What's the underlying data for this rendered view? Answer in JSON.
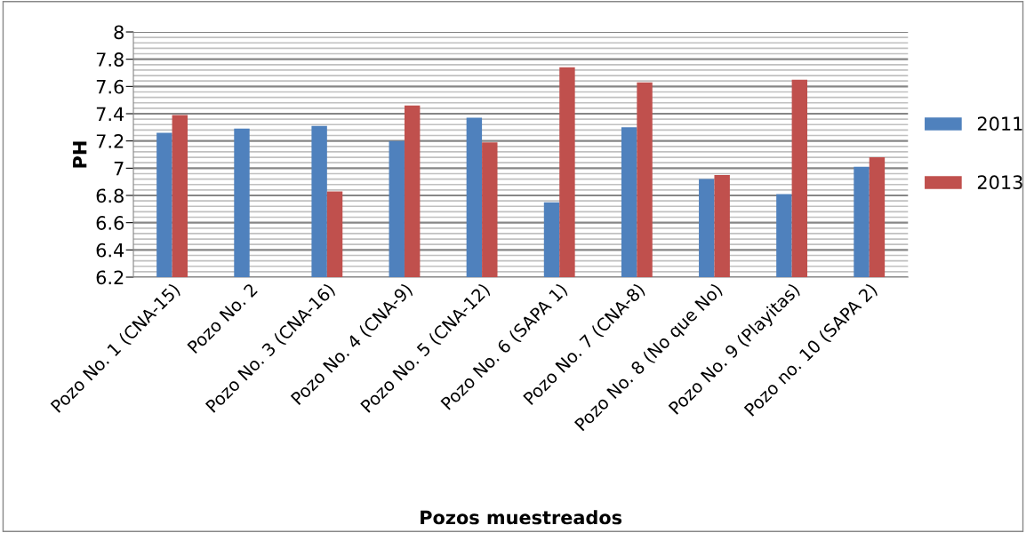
{
  "chart_data": {
    "type": "bar",
    "xlabel": "Pozos muestreados",
    "ylabel": "PH",
    "categories": [
      "Pozo No. 1 (CNA-15)",
      "Pozo No. 2",
      "Pozo No. 3 (CNA-16)",
      "Pozo No. 4 (CNA-9)",
      "Pozo No. 5 (CNA-12)",
      "Pozo No. 6 (SAPA 1)",
      "Pozo No. 7 (CNA-8)",
      "Pozo No. 8 (No que No)",
      "Pozo No. 9 (Playitas)",
      "Pozo no. 10 (SAPA 2)"
    ],
    "series": [
      {
        "name": "2011",
        "color": "#4f81bd",
        "values": [
          7.26,
          7.29,
          7.31,
          7.2,
          7.37,
          6.75,
          7.3,
          6.92,
          6.81,
          7.01
        ]
      },
      {
        "name": "2013",
        "color": "#c0504d",
        "values": [
          7.39,
          null,
          6.83,
          7.46,
          7.19,
          7.74,
          7.63,
          6.95,
          7.65,
          7.08
        ]
      }
    ],
    "ylim": [
      6.2,
      8
    ],
    "yticks": [
      6.2,
      {
        "value": 6.24,
        "label": null
      },
      {
        "value": 6.28,
        "label": null
      },
      {
        "value": 6.32,
        "label": null
      },
      {
        "value": 6.36,
        "label": null
      },
      6.4,
      {
        "value": 6.44,
        "label": null
      },
      {
        "value": 6.48,
        "label": null
      },
      {
        "value": 6.52,
        "label": null
      },
      {
        "value": 6.56,
        "label": null
      },
      6.6,
      {
        "value": 6.64,
        "label": null
      },
      {
        "value": 6.68,
        "label": null
      },
      {
        "value": 6.72,
        "label": null
      },
      {
        "value": 6.76,
        "label": null
      },
      6.8,
      {
        "value": 6.84,
        "label": null
      },
      {
        "value": 6.88,
        "label": null
      },
      {
        "value": 6.92,
        "label": null
      },
      {
        "value": 6.96,
        "label": null
      },
      7,
      {
        "value": 7.04,
        "label": null
      },
      {
        "value": 7.08,
        "label": null
      },
      {
        "value": 7.12,
        "label": null
      },
      {
        "value": 7.16,
        "label": null
      },
      7.2,
      {
        "value": 7.24,
        "label": null
      },
      {
        "value": 7.28,
        "label": null
      },
      {
        "value": 7.32,
        "label": null
      },
      {
        "value": 7.36,
        "label": null
      },
      7.4,
      {
        "value": 7.44,
        "label": null
      },
      {
        "value": 7.48,
        "label": null
      },
      {
        "value": 7.52,
        "label": null
      },
      {
        "value": 7.56,
        "label": null
      },
      7.6,
      {
        "value": 7.64,
        "label": null
      },
      {
        "value": 7.68,
        "label": null
      },
      {
        "value": 7.72,
        "label": null
      },
      {
        "value": 7.76,
        "label": null
      },
      7.8,
      {
        "value": 7.84,
        "label": null
      },
      {
        "value": 7.88,
        "label": null
      },
      {
        "value": 7.92,
        "label": null
      },
      {
        "value": 7.96,
        "label": null
      },
      8
    ],
    "grid": "y",
    "legend": "right"
  }
}
